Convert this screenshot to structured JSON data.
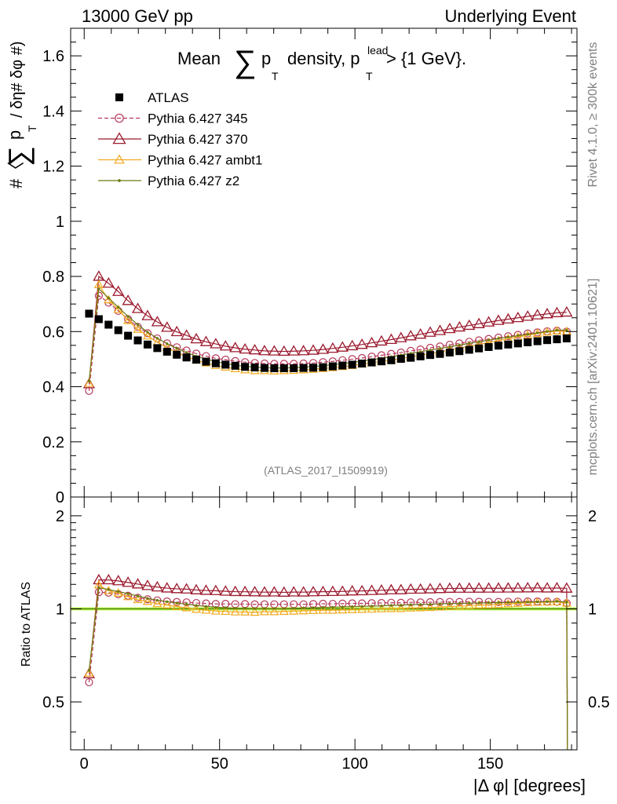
{
  "header": {
    "left": "13000 GeV pp",
    "right": "Underlying Event"
  },
  "side": {
    "rivet": "Rivet 4.1.0, ≥ 300k events",
    "mcplots": "mcplots.cern.ch [arXiv:2401.10621]"
  },
  "chart_data": {
    "type": "line",
    "title_pre": "Mean",
    "title_mid": "p",
    "title_sub": "T",
    "title_post": "density, p",
    "title_lead_sup": "lead",
    "title_lead_sub": "T",
    "title_tail": " > {1 GeV}.",
    "ylabel_main_pre": "#〈",
    "ylabel_main_p": "p",
    "ylabel_main_sub": "T",
    "ylabel_main_post": "/ δη# δφ #)",
    "ylabel_ratio": "Ratio to ATLAS",
    "xlabel": "|Δ φ| [degrees]",
    "analysis_id": "(ATLAS_2017_I1509919)",
    "xlim": [
      -5,
      182
    ],
    "ylim": [
      0,
      1.7
    ],
    "ratio_ylim": [
      0.35,
      2.3
    ],
    "x_ticks": [
      "0",
      "50",
      "100",
      "150"
    ],
    "y_ticks": [
      "0",
      "0.2",
      "0.4",
      "0.6",
      "0.8",
      "1",
      "1.2",
      "1.4",
      "1.6"
    ],
    "ratio_ticks": [
      "0.5",
      "1",
      "2"
    ],
    "legend": {
      "atlas": "ATLAS",
      "s345": "Pythia 6.427 345",
      "s370": "Pythia 6.427 370",
      "ambt1": "Pythia 6.427 ambt1",
      "z2": "Pythia 6.427 z2"
    },
    "colors": {
      "atlas": "#000000",
      "s345": "#b5385a",
      "s370": "#9b1a2e",
      "ambt1": "#f0a81c",
      "z2": "#6b7a12",
      "band": "#ccff66"
    },
    "x": [
      1.8,
      5.4,
      9.0,
      12.6,
      16.2,
      19.8,
      23.4,
      27.0,
      30.6,
      34.2,
      37.8,
      41.4,
      45.0,
      48.6,
      52.2,
      55.8,
      59.4,
      63.0,
      66.6,
      70.2,
      73.8,
      77.4,
      81.0,
      84.6,
      88.2,
      91.8,
      95.4,
      99.0,
      102.6,
      106.2,
      109.8,
      113.4,
      117.0,
      120.6,
      124.2,
      127.8,
      131.4,
      135.0,
      138.6,
      142.2,
      145.8,
      149.4,
      153.0,
      156.6,
      160.2,
      163.8,
      167.4,
      171.0,
      174.6,
      178.2
    ],
    "series": [
      {
        "key": "atlas",
        "name": "ATLAS",
        "values": [
          0.665,
          0.645,
          0.625,
          0.605,
          0.585,
          0.568,
          0.553,
          0.54,
          0.527,
          0.516,
          0.506,
          0.498,
          0.491,
          0.485,
          0.48,
          0.476,
          0.472,
          0.47,
          0.468,
          0.467,
          0.467,
          0.467,
          0.468,
          0.469,
          0.471,
          0.474,
          0.477,
          0.48,
          0.484,
          0.488,
          0.492,
          0.496,
          0.501,
          0.505,
          0.51,
          0.515,
          0.519,
          0.524,
          0.529,
          0.534,
          0.539,
          0.544,
          0.549,
          0.553,
          0.557,
          0.561,
          0.565,
          0.569,
          0.572,
          0.575
        ]
      },
      {
        "key": "s345",
        "name": "Pythia 6.427 345",
        "values": [
          0.385,
          0.73,
          0.705,
          0.675,
          0.645,
          0.617,
          0.594,
          0.575,
          0.557,
          0.543,
          0.531,
          0.52,
          0.511,
          0.503,
          0.498,
          0.493,
          0.489,
          0.486,
          0.484,
          0.483,
          0.483,
          0.483,
          0.484,
          0.486,
          0.489,
          0.492,
          0.496,
          0.5,
          0.504,
          0.509,
          0.514,
          0.519,
          0.524,
          0.53,
          0.535,
          0.541,
          0.546,
          0.552,
          0.557,
          0.563,
          0.568,
          0.573,
          0.578,
          0.583,
          0.588,
          0.593,
          0.597,
          0.601,
          0.603,
          0.6
        ]
      },
      {
        "key": "s370",
        "name": "Pythia 6.427 370",
        "values": [
          0.41,
          0.8,
          0.775,
          0.745,
          0.712,
          0.683,
          0.657,
          0.635,
          0.615,
          0.599,
          0.586,
          0.573,
          0.563,
          0.555,
          0.547,
          0.541,
          0.536,
          0.533,
          0.53,
          0.529,
          0.528,
          0.529,
          0.53,
          0.532,
          0.535,
          0.539,
          0.543,
          0.548,
          0.553,
          0.559,
          0.565,
          0.571,
          0.577,
          0.584,
          0.59,
          0.597,
          0.603,
          0.61,
          0.616,
          0.622,
          0.628,
          0.634,
          0.64,
          0.645,
          0.65,
          0.655,
          0.66,
          0.664,
          0.668,
          0.67
        ]
      },
      {
        "key": "ambt1",
        "name": "Pythia 6.427 ambt1",
        "values": [
          0.412,
          0.77,
          0.715,
          0.68,
          0.64,
          0.608,
          0.584,
          0.561,
          0.542,
          0.525,
          0.51,
          0.496,
          0.486,
          0.477,
          0.471,
          0.465,
          0.461,
          0.458,
          0.458,
          0.457,
          0.458,
          0.459,
          0.461,
          0.463,
          0.466,
          0.469,
          0.473,
          0.477,
          0.482,
          0.487,
          0.492,
          0.497,
          0.502,
          0.508,
          0.514,
          0.52,
          0.526,
          0.533,
          0.54,
          0.547,
          0.554,
          0.56,
          0.567,
          0.574,
          0.58,
          0.587,
          0.593,
          0.598,
          0.602,
          0.6
        ]
      },
      {
        "key": "z2",
        "name": "Pythia 6.427 z2",
        "values": [
          0.42,
          0.755,
          0.722,
          0.688,
          0.655,
          0.625,
          0.598,
          0.576,
          0.556,
          0.539,
          0.524,
          0.511,
          0.5,
          0.491,
          0.484,
          0.478,
          0.474,
          0.471,
          0.469,
          0.468,
          0.468,
          0.469,
          0.471,
          0.473,
          0.476,
          0.48,
          0.484,
          0.488,
          0.493,
          0.498,
          0.503,
          0.509,
          0.515,
          0.521,
          0.527,
          0.533,
          0.539,
          0.545,
          0.551,
          0.557,
          0.563,
          0.569,
          0.575,
          0.58,
          0.585,
          0.59,
          0.595,
          0.6,
          0.605,
          0.605
        ]
      }
    ],
    "ratio_last_point": 0.3
  }
}
